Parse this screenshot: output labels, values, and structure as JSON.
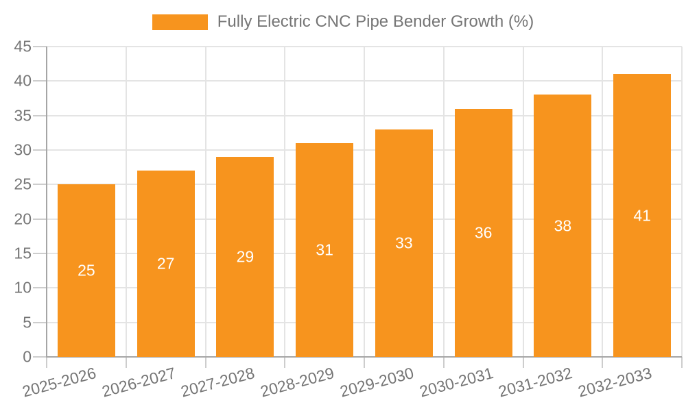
{
  "legend": {
    "label": "Fully Electric CNC Pipe Bender Growth (%)"
  },
  "colors": {
    "bar": "#F7941E",
    "gridline": "#E4E4E4",
    "axis": "#A6A6A6",
    "tick": "#CDCDCD",
    "label": "#757575",
    "value_label": "#FFFFFF",
    "background": "#FFFFFF"
  },
  "chart_data": {
    "type": "bar",
    "title": "",
    "xlabel": "",
    "ylabel": "",
    "categories": [
      "2025-2026",
      "2026-2027",
      "2027-2028",
      "2028-2029",
      "2029-2030",
      "2030-2031",
      "2031-2032",
      "2032-2033"
    ],
    "values": [
      25,
      27,
      29,
      31,
      33,
      36,
      38,
      41
    ],
    "series_name": "Fully Electric CNC Pipe Bender Growth (%)",
    "ylim": [
      0,
      45
    ],
    "ytick_step": 5,
    "yticks": [
      0,
      5,
      10,
      15,
      20,
      25,
      30,
      35,
      40,
      45
    ],
    "grid": true,
    "legend_position": "top-center",
    "value_label_position": "inside-center",
    "x_label_rotation_deg": -15
  }
}
